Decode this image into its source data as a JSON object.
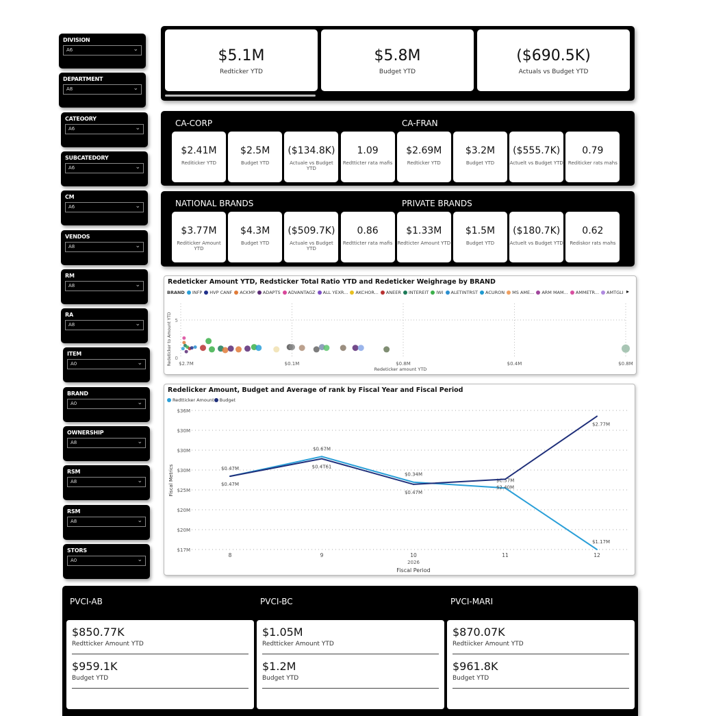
{
  "slicers": [
    {
      "label": "DIVISION",
      "value": "A6"
    },
    {
      "label": "DEPARTMENT",
      "value": "A8"
    },
    {
      "label": "CATEOORY",
      "value": "A6"
    },
    {
      "label": "SUBCATEDORY",
      "value": "A6"
    },
    {
      "label": "CM",
      "value": "A6"
    },
    {
      "label": "VENDOS",
      "value": "A8"
    },
    {
      "label": "RM",
      "value": "A8"
    },
    {
      "label": "RA",
      "value": "A8"
    },
    {
      "label": "ITEM",
      "value": "A0"
    },
    {
      "label": "BRAND",
      "value": "A0"
    },
    {
      "label": "OWNERSHIP",
      "value": "A8"
    },
    {
      "label": "RSM",
      "value": "A8"
    },
    {
      "label": "RSM",
      "value": "A8"
    },
    {
      "label": "STORS",
      "value": "A0"
    }
  ],
  "kpis": [
    {
      "value": "$5.1M",
      "label": "Redticker YTD"
    },
    {
      "value": "$5.8M",
      "label": "Budget YTD"
    },
    {
      "value": "($690.5K)",
      "label": "Actuals vs Budget YTD"
    }
  ],
  "regions": [
    {
      "groups": [
        {
          "title": "CA-CORP",
          "cards": [
            {
              "value": "$2.41M",
              "label": "Rediticker YTD"
            },
            {
              "value": "$2.5M",
              "label": "Budget YTD"
            },
            {
              "value": "($134.8K)",
              "label": "Actuale vs Budget YTD"
            },
            {
              "value": "1.09",
              "label": "Redtticter rata mafis"
            }
          ]
        },
        {
          "title": "CA-FRAN",
          "cards": [
            {
              "value": "$2.69M",
              "label": "Redticker YTD"
            },
            {
              "value": "$3.2M",
              "label": "Budget YTD"
            },
            {
              "value": "($555.7K)",
              "label": "Actuelt vs Budget YTD"
            },
            {
              "value": "0.79",
              "label": "Rediticker rats mahs"
            }
          ]
        }
      ]
    },
    {
      "groups": [
        {
          "title": "NATIONAL BRANDS",
          "cards": [
            {
              "value": "$3.77M",
              "label": "Rediticker Amount YTD"
            },
            {
              "value": "$4.3M",
              "label": "Budget YTD"
            },
            {
              "value": "($509.7K)",
              "label": "Actuale vs Budget YTD"
            },
            {
              "value": "0.86",
              "label": "Redtticter rata mafis"
            }
          ]
        },
        {
          "title": "PRIVATE BRANDS",
          "cards": [
            {
              "value": "$1.33M",
              "label": "Redticter Amount YTD"
            },
            {
              "value": "$1.5M",
              "label": "Budget YTD"
            },
            {
              "value": "($180.7K)",
              "label": "Actuelt vs Budget YTD"
            },
            {
              "value": "0.62",
              "label": "Rediskor rats mahs"
            }
          ]
        }
      ]
    }
  ],
  "scatter": {
    "title": "Redeticker Amount YTD, Redsticker Total Ratio YTD and Redeticker Weighrage by BRAND",
    "legend_title": "BRAND",
    "legend": [
      {
        "name": "INFP",
        "color": "#2a9fd8"
      },
      {
        "name": "HVP CANF",
        "color": "#1f2f8a"
      },
      {
        "name": "ACKMP",
        "color": "#e07b39"
      },
      {
        "name": "ADAPTS",
        "color": "#5b2a75"
      },
      {
        "name": "ADVANTAGZ",
        "color": "#d9479a"
      },
      {
        "name": "ALL YEXR...",
        "color": "#7d4fc4"
      },
      {
        "name": "AKCHOR...",
        "color": "#e8c020"
      },
      {
        "name": "ANEER",
        "color": "#b83232"
      },
      {
        "name": "INTEREIT",
        "color": "#1d7a58"
      },
      {
        "name": "IWI",
        "color": "#3cb04a"
      },
      {
        "name": "ALETINTRST",
        "color": "#2a8fd0"
      },
      {
        "name": "ACURON",
        "color": "#1e9ad0"
      },
      {
        "name": "MS AME...",
        "color": "#f0a060"
      },
      {
        "name": "ARM MAM...",
        "color": "#a0469c"
      },
      {
        "name": "AMMETR...",
        "color": "#d84fa0"
      },
      {
        "name": "AMTGLI",
        "color": "#b08ae0"
      }
    ],
    "chart_data": {
      "type": "scatter",
      "xlabel": "Redeticker amount YTD",
      "ylabel": "Redeticker to Amount YTD",
      "x_tick_labels": [
        "$2.7M",
        "$0.1M",
        "$0.8M",
        "$0.4M",
        "$0.8M"
      ],
      "xlim": [
        0,
        4
      ],
      "y_tick_labels": [
        "0",
        "5"
      ],
      "ylim": [
        0,
        5
      ],
      "grid": true,
      "points": [
        [
          0.02,
          1.2,
          "#2a9fd8"
        ],
        [
          0.03,
          2.0,
          "#e07b39"
        ],
        [
          0.03,
          2.6,
          "#d9479a"
        ],
        [
          0.04,
          1.6,
          "#1d7a58"
        ],
        [
          0.05,
          0.8,
          "#5b2a75"
        ],
        [
          0.06,
          1.4,
          "#3cb04a"
        ],
        [
          0.08,
          1.2,
          "#b83232"
        ],
        [
          0.1,
          1.3,
          "#1f2f8a"
        ],
        [
          0.13,
          1.4,
          "#2a8fd0"
        ],
        [
          0.2,
          1.3,
          "#b83232"
        ],
        [
          0.25,
          2.2,
          "#3cb04a"
        ],
        [
          0.28,
          1.1,
          "#3cb04a"
        ],
        [
          0.36,
          1.2,
          "#1d7a58"
        ],
        [
          0.4,
          1.0,
          "#e07b39"
        ],
        [
          0.45,
          1.2,
          "#5b2a75"
        ],
        [
          0.52,
          1.1,
          "#e07b39"
        ],
        [
          0.6,
          1.2,
          "#5b2a75"
        ],
        [
          0.66,
          1.4,
          "#3cb04a"
        ],
        [
          0.7,
          1.3,
          "#2a9fd8"
        ],
        [
          0.86,
          1.1,
          "#f0e0b0"
        ],
        [
          0.98,
          1.4,
          "#555"
        ],
        [
          1.0,
          1.4,
          "#888"
        ],
        [
          1.09,
          1.3,
          "#b0907a"
        ],
        [
          1.22,
          1.1,
          "#666"
        ],
        [
          1.27,
          1.4,
          "#7d8fb0"
        ],
        [
          1.31,
          1.3,
          "#5ec46e"
        ],
        [
          1.46,
          1.3,
          "#8a7a6a"
        ],
        [
          1.57,
          1.3,
          "#5b2a75"
        ],
        [
          1.62,
          1.3,
          "#8aa8e8"
        ],
        [
          1.85,
          1.1,
          "#6a7a5a"
        ],
        [
          4.0,
          1.2,
          "#9abca8"
        ]
      ]
    }
  },
  "line": {
    "title": "Redelicker Amount, Budget and Average of rank by Fiscal Year and Fiscal Period",
    "chart_data": {
      "type": "line",
      "xlabel": "Fiscal Period",
      "x_group_label": "2026",
      "ylabel": "Fiscal Metrics",
      "categories": [
        "8",
        "9",
        "10",
        "11",
        "12"
      ],
      "y_tick_labels": [
        "$36M",
        "$30M",
        "$30M",
        "$30M",
        "$25M",
        "$20M",
        "$20M",
        "$17M"
      ],
      "ylim": [
        17,
        36
      ],
      "grid": true,
      "legend": "top-left",
      "series": [
        {
          "name": "Redtticker Amount",
          "color": "#2a9fd8",
          "values": [
            27.0,
            29.7,
            26.2,
            25.4,
            17.0
          ],
          "labels": [
            "$0.47M",
            "$0.67M",
            "$0.34M",
            "$C.57M",
            "$1.17M"
          ]
        },
        {
          "name": "Budget",
          "color": "#1f2f7a",
          "values": [
            27.0,
            29.4,
            25.9,
            26.6,
            35.2
          ],
          "labels": [
            "$0.47M",
            "$0.4T61",
            "$0.47M",
            "$2.40M",
            "$2.77M"
          ]
        }
      ]
    }
  },
  "bottom": [
    {
      "title": "PVCI-AB",
      "rows": [
        {
          "value": "$850.77K",
          "label": "Redtticker Amount YTD"
        },
        {
          "value": "$959.1K",
          "label": "Budget YTD"
        }
      ]
    },
    {
      "title": "PVCI-BC",
      "rows": [
        {
          "value": "$1.05M",
          "label": "Redtticker Amount YTD"
        },
        {
          "value": "$1.2M",
          "label": "Budget YTD"
        }
      ]
    },
    {
      "title": "PVCI-MARI",
      "rows": [
        {
          "value": "$870.07K",
          "label": "Redtiicker Amount YTD"
        },
        {
          "value": "$961.8K",
          "label": "Budget YTD"
        }
      ]
    }
  ]
}
